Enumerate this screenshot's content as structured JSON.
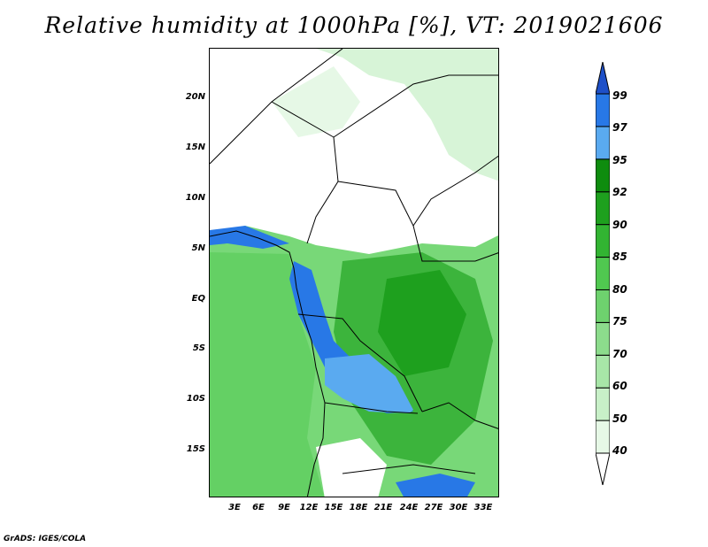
{
  "title": "Relative humidity at 1000hPa [%], VT: 2019021606",
  "credit": "GrADS: IGES/COLA",
  "map": {
    "lat_labels": [
      "20N",
      "15N",
      "10N",
      "5N",
      "EQ",
      "5S",
      "10S",
      "15S"
    ],
    "lon_labels": [
      "3E",
      "6E",
      "9E",
      "12E",
      "15E",
      "18E",
      "21E",
      "24E",
      "27E",
      "30E",
      "33E"
    ]
  },
  "colorbar": {
    "levels": [
      "40",
      "50",
      "60",
      "70",
      "75",
      "80",
      "85",
      "90",
      "92",
      "95",
      "97",
      "99"
    ],
    "colors": [
      "#ffffff",
      "#e6f8e6",
      "#c8f0c8",
      "#a8e6a8",
      "#8cdc8c",
      "#6ed26e",
      "#50c850",
      "#32b432",
      "#1ea01e",
      "#0e8c0e",
      "#5aaaf0",
      "#2878e6",
      "#1e50c8"
    ]
  }
}
